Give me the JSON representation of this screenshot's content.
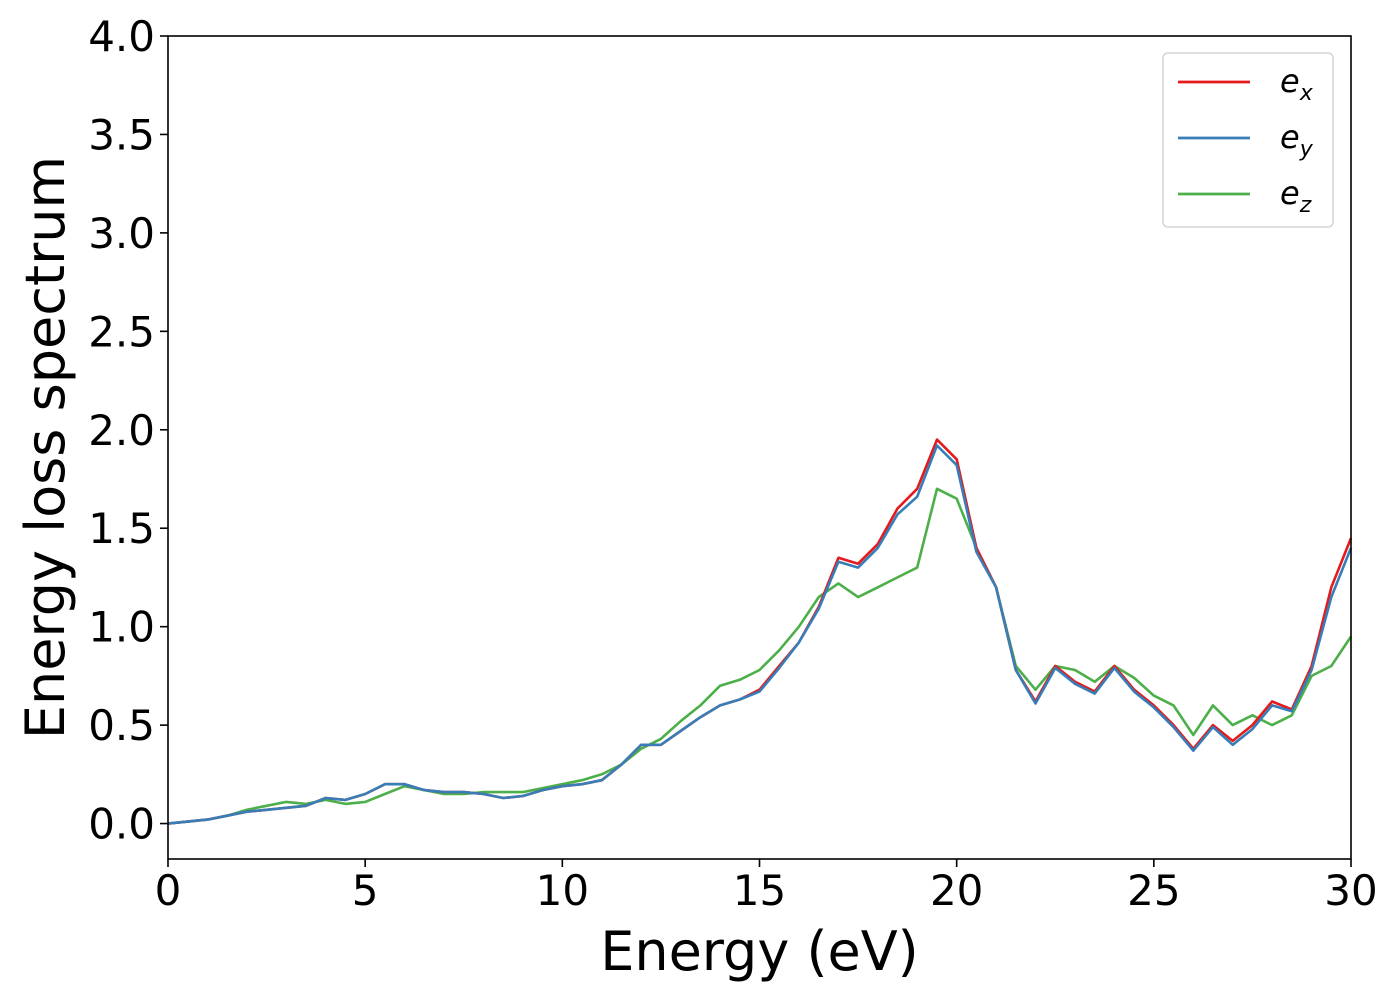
{
  "chart_data": {
    "type": "line",
    "title": "",
    "xlabel": "Energy (eV)",
    "ylabel": "Energy loss spectrum",
    "xlim": [
      0,
      30
    ],
    "ylim": [
      -0.18,
      4.0
    ],
    "xticks": [
      "0",
      "5",
      "10",
      "15",
      "20",
      "25",
      "30"
    ],
    "yticks": [
      "0.0",
      "0.5",
      "1.0",
      "1.5",
      "2.0",
      "2.5",
      "3.0",
      "3.5",
      "4.0"
    ],
    "grid": false,
    "legend_position": "top-right",
    "colors": {
      "ex": "#e41a1c",
      "ey": "#377eb8",
      "ez": "#4daf4a"
    },
    "x": [
      0,
      0.5,
      1,
      1.5,
      2,
      2.5,
      3,
      3.5,
      4,
      4.5,
      5,
      5.5,
      6,
      6.5,
      7,
      7.5,
      8,
      8.5,
      9,
      9.5,
      10,
      10.5,
      11,
      11.5,
      12,
      12.5,
      13,
      13.5,
      14,
      14.5,
      15,
      15.5,
      16,
      16.5,
      17,
      17.5,
      18,
      18.5,
      19,
      19.5,
      20,
      20.5,
      21,
      21.5,
      22,
      22.5,
      23,
      23.5,
      24,
      24.5,
      25,
      25.5,
      26,
      26.5,
      27,
      27.5,
      28,
      28.5,
      29,
      29.5,
      30
    ],
    "series": [
      {
        "key": "ex",
        "name_base": "e",
        "name_sub": "x",
        "values": [
          0.0,
          0.01,
          0.02,
          0.04,
          0.06,
          0.07,
          0.08,
          0.09,
          0.13,
          0.12,
          0.15,
          0.2,
          0.2,
          0.17,
          0.16,
          0.16,
          0.15,
          0.13,
          0.14,
          0.17,
          0.19,
          0.2,
          0.22,
          0.3,
          0.4,
          0.4,
          0.47,
          0.54,
          0.6,
          0.63,
          0.68,
          0.8,
          0.92,
          1.1,
          1.35,
          1.32,
          1.42,
          1.6,
          1.7,
          1.95,
          1.85,
          1.4,
          1.2,
          0.78,
          0.62,
          0.8,
          0.72,
          0.67,
          0.8,
          0.68,
          0.6,
          0.5,
          0.38,
          0.5,
          0.42,
          0.5,
          0.62,
          0.58,
          0.8,
          1.2,
          1.45
        ]
      },
      {
        "key": "ey",
        "name_base": "e",
        "name_sub": "y",
        "values": [
          0.0,
          0.01,
          0.02,
          0.04,
          0.06,
          0.07,
          0.08,
          0.09,
          0.13,
          0.12,
          0.15,
          0.2,
          0.2,
          0.17,
          0.16,
          0.16,
          0.15,
          0.13,
          0.14,
          0.17,
          0.19,
          0.2,
          0.22,
          0.3,
          0.4,
          0.4,
          0.47,
          0.54,
          0.6,
          0.63,
          0.67,
          0.79,
          0.92,
          1.09,
          1.33,
          1.3,
          1.4,
          1.57,
          1.66,
          1.92,
          1.82,
          1.38,
          1.2,
          0.78,
          0.61,
          0.79,
          0.71,
          0.66,
          0.79,
          0.67,
          0.59,
          0.49,
          0.37,
          0.49,
          0.4,
          0.48,
          0.6,
          0.57,
          0.78,
          1.15,
          1.4
        ]
      },
      {
        "key": "ez",
        "name_base": "e",
        "name_sub": "z",
        "values": [
          0.0,
          0.01,
          0.02,
          0.04,
          0.07,
          0.09,
          0.11,
          0.1,
          0.12,
          0.1,
          0.11,
          0.15,
          0.19,
          0.17,
          0.15,
          0.15,
          0.16,
          0.16,
          0.16,
          0.18,
          0.2,
          0.22,
          0.25,
          0.3,
          0.38,
          0.43,
          0.52,
          0.6,
          0.7,
          0.73,
          0.78,
          0.88,
          1.0,
          1.15,
          1.22,
          1.15,
          1.2,
          1.25,
          1.3,
          1.7,
          1.65,
          1.4,
          1.2,
          0.8,
          0.68,
          0.8,
          0.78,
          0.72,
          0.8,
          0.74,
          0.65,
          0.6,
          0.45,
          0.6,
          0.5,
          0.55,
          0.5,
          0.55,
          0.75,
          0.8,
          0.95
        ]
      }
    ]
  }
}
